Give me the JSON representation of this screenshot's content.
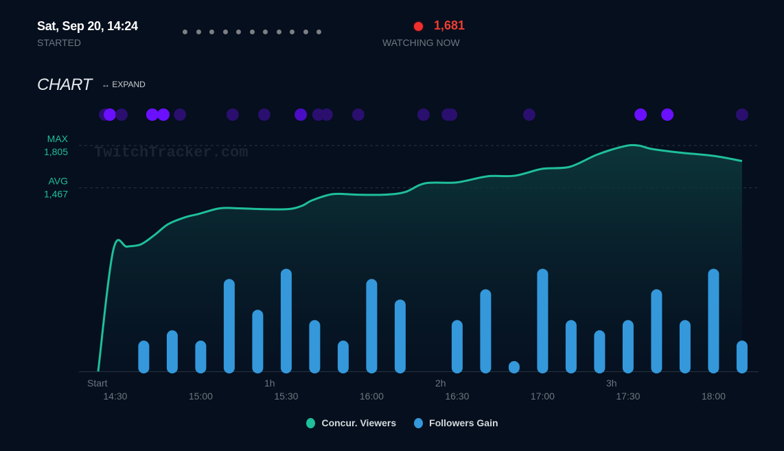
{
  "header": {
    "started_value": "Sat, Sep 20, 14:24",
    "started_label": "STARTED",
    "watching_value": "1,681",
    "watching_label": "WATCHING NOW",
    "pager_count": 11
  },
  "chart_header": {
    "title": "CHART",
    "expand_label": "↔ EXPAND"
  },
  "colors": {
    "viewers": "#1fbf9b",
    "followers": "#3498db",
    "event_bright": "#6a10ff",
    "event_mid": "#4a0cc4",
    "event_dim": "#2a0f6e",
    "live": "#f0302f"
  },
  "chart_data": {
    "type": "line+bar",
    "watermark": "TwitchTracker.com",
    "x_unit": "minutes since start",
    "xlim": [
      0,
      226
    ],
    "viewers_ylim": [
      0,
      1805
    ],
    "reference_lines": [
      {
        "label": "MAX",
        "value_text": "1,805",
        "value": 1805
      },
      {
        "label": "AVG",
        "value_text": "1,467",
        "value": 1467
      }
    ],
    "duration_ticks": [
      {
        "label": "Start",
        "minute": 0
      },
      {
        "label": "1h",
        "minute": 60
      },
      {
        "label": "2h",
        "minute": 120
      },
      {
        "label": "3h",
        "minute": 180
      }
    ],
    "time_ticks": [
      {
        "label": "14:30",
        "minute": 6
      },
      {
        "label": "15:00",
        "minute": 36
      },
      {
        "label": "15:30",
        "minute": 66
      },
      {
        "label": "16:00",
        "minute": 96
      },
      {
        "label": "16:30",
        "minute": 126
      },
      {
        "label": "17:00",
        "minute": 156
      },
      {
        "label": "17:30",
        "minute": 186
      },
      {
        "label": "18:00",
        "minute": 216
      }
    ],
    "series": [
      {
        "name": "Concur. Viewers",
        "type": "line",
        "x": [
          0,
          5.3,
          10.1,
          14.9,
          19.8,
          24.6,
          30.6,
          35.4,
          42.7,
          49.9,
          57.1,
          66.7,
          71.6,
          75.2,
          82.4,
          90.8,
          100.5,
          107.7,
          114.9,
          125.8,
          136.6,
          146.3,
          155.9,
          165.5,
          175.2,
          184.8,
          189.6,
          194.5,
          204.1,
          216.1,
          226
        ],
        "y": [
          0,
          970,
          997,
          1014,
          1090,
          1177,
          1232,
          1259,
          1303,
          1303,
          1297,
          1297,
          1324,
          1368,
          1417,
          1412,
          1412,
          1433,
          1504,
          1510,
          1559,
          1564,
          1619,
          1635,
          1733,
          1800,
          1805,
          1777,
          1749,
          1722,
          1681
        ]
      },
      {
        "name": "Followers Gain",
        "type": "bar",
        "x": [
          16,
          26,
          36,
          46,
          56,
          66,
          76,
          86,
          96,
          106,
          116,
          126,
          136,
          146,
          156,
          166,
          176,
          186,
          196,
          206,
          216,
          226
        ],
        "y": [
          3,
          4,
          3,
          9,
          6,
          10,
          5,
          3,
          9,
          7,
          0,
          5,
          8,
          1,
          10,
          5,
          4,
          5,
          8,
          5,
          10,
          3
        ],
        "ylim": [
          0,
          22
        ]
      }
    ],
    "events": [
      {
        "minute": 2.4,
        "level": "dim"
      },
      {
        "minute": 4.1,
        "level": "bright"
      },
      {
        "minute": 8.2,
        "level": "dim"
      },
      {
        "minute": 19.0,
        "level": "bright"
      },
      {
        "minute": 22.9,
        "level": "bright"
      },
      {
        "minute": 28.7,
        "level": "dim"
      },
      {
        "minute": 47.2,
        "level": "dim"
      },
      {
        "minute": 58.3,
        "level": "dim"
      },
      {
        "minute": 71.1,
        "level": "mid"
      },
      {
        "minute": 77.3,
        "level": "dim"
      },
      {
        "minute": 80.2,
        "level": "dim"
      },
      {
        "minute": 91.3,
        "level": "dim"
      },
      {
        "minute": 114.2,
        "level": "dim"
      },
      {
        "minute": 122.7,
        "level": "dim"
      },
      {
        "minute": 123.9,
        "level": "dim"
      },
      {
        "minute": 151.3,
        "level": "dim"
      },
      {
        "minute": 190.4,
        "level": "bright"
      },
      {
        "minute": 199.8,
        "level": "bright"
      },
      {
        "minute": 226,
        "level": "dim"
      }
    ]
  },
  "legend": [
    {
      "label": "Concur. Viewers",
      "color": "#1fbf9b"
    },
    {
      "label": "Followers Gain",
      "color": "#3498db"
    }
  ]
}
